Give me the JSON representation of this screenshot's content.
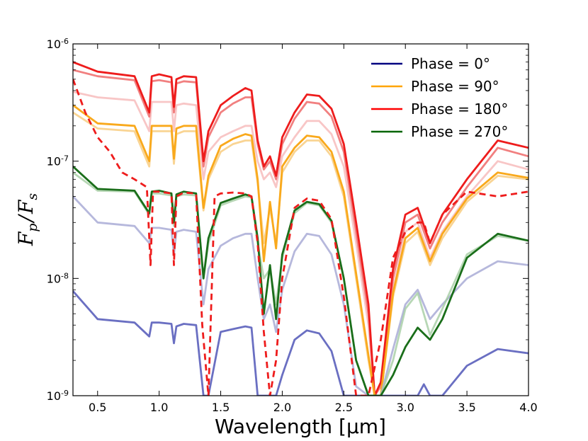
{
  "chart_data": {
    "type": "line",
    "title": "",
    "xlabel": "Wavelength [μm]",
    "ylabel": "F_p / F_s",
    "ylabel_parts": {
      "num_main": "F",
      "num_sub": "p",
      "slash": "/",
      "den_main": "F",
      "den_sub": "s"
    },
    "xlim": [
      0.3,
      4.0
    ],
    "ylim": [
      1e-09,
      1e-06
    ],
    "yscale": "log",
    "xticks": [
      0.5,
      1.0,
      1.5,
      2.0,
      2.5,
      3.0,
      3.5,
      4.0
    ],
    "xtick_labels": [
      "0.5",
      "1.0",
      "1.5",
      "2.0",
      "2.5",
      "3.0",
      "3.5",
      "4.0"
    ],
    "ytick_labels": [
      {
        "base": "10",
        "exp": "-6"
      },
      {
        "base": "10",
        "exp": "-7"
      },
      {
        "base": "10",
        "exp": "-8"
      },
      {
        "base": "10",
        "exp": "-9"
      }
    ],
    "legend": [
      "Phase = 0°",
      "Phase = 90°",
      "Phase = 180°",
      "Phase = 270°"
    ],
    "legend_position": "top-right",
    "series": [
      {
        "name": "Phase = 180° (light)",
        "color": "#f08080",
        "opacity": 0.45,
        "x": [
          0.3,
          0.5,
          0.8,
          0.92,
          0.94,
          1.0,
          1.1,
          1.12,
          1.14,
          1.2,
          1.3,
          1.36,
          1.4,
          1.5,
          1.6,
          1.7,
          1.75,
          1.8,
          1.85,
          1.9,
          1.95,
          2.0,
          2.1,
          2.2,
          2.3,
          2.4,
          2.5,
          2.6,
          2.7,
          2.75,
          2.8,
          2.9,
          3.0,
          3.1,
          3.2,
          3.3,
          3.5,
          3.75,
          4.0
        ],
        "y": [
          3.9e-07,
          3.5e-07,
          3.3e-07,
          1.8e-07,
          3.2e-07,
          3.2e-07,
          3.2e-07,
          1.8e-07,
          3e-07,
          3.1e-07,
          3e-07,
          7e-08,
          1.2e-07,
          1.6e-07,
          1.8e-07,
          2e-07,
          2e-07,
          1e-07,
          7e-08,
          8e-08,
          6e-08,
          1.1e-07,
          1.6e-07,
          2.2e-07,
          2.2e-07,
          1.7e-07,
          9e-08,
          2e-08,
          4e-09,
          1e-09,
          1e-09,
          8e-09,
          2.5e-08,
          3e-08,
          1.5e-08,
          2.5e-08,
          5e-08,
          1e-07,
          8.5e-08
        ]
      },
      {
        "name": "Phase = 180° (mid)",
        "color": "#ef6a6a",
        "opacity": 0.85,
        "x": [
          0.3,
          0.5,
          0.8,
          0.92,
          0.94,
          1.0,
          1.1,
          1.12,
          1.14,
          1.2,
          1.3,
          1.36,
          1.4,
          1.5,
          1.6,
          1.7,
          1.75,
          1.8,
          1.85,
          1.9,
          1.95,
          2.0,
          2.1,
          2.2,
          2.3,
          2.4,
          2.5,
          2.6,
          2.7,
          2.75,
          2.8,
          2.9,
          3.0,
          3.1,
          3.2,
          3.3,
          3.5,
          3.75,
          4.0
        ],
        "y": [
          6e-07,
          5.3e-07,
          4.9e-07,
          2.4e-07,
          4.8e-07,
          4.9e-07,
          4.7e-07,
          2.6e-07,
          4.6e-07,
          4.8e-07,
          4.7e-07,
          9e-08,
          1.6e-07,
          2.6e-07,
          3.1e-07,
          3.5e-07,
          3.5e-07,
          1.4e-07,
          8.5e-08,
          1e-07,
          7e-08,
          1.4e-07,
          2.3e-07,
          3.2e-07,
          3.1e-07,
          2.4e-07,
          1.2e-07,
          2.5e-08,
          5e-09,
          1e-09,
          1.2e-09,
          1e-08,
          3e-08,
          3.5e-08,
          1.8e-08,
          3e-08,
          6e-08,
          1.3e-07,
          1.1e-07
        ]
      },
      {
        "name": "Phase = 180°",
        "color": "#ee1c1c",
        "opacity": 1,
        "x": [
          0.3,
          0.5,
          0.8,
          0.92,
          0.94,
          1.0,
          1.1,
          1.12,
          1.14,
          1.2,
          1.3,
          1.36,
          1.4,
          1.5,
          1.6,
          1.7,
          1.75,
          1.8,
          1.85,
          1.9,
          1.95,
          2.0,
          2.1,
          2.2,
          2.3,
          2.4,
          2.5,
          2.6,
          2.7,
          2.75,
          2.8,
          2.9,
          3.0,
          3.1,
          3.2,
          3.3,
          3.5,
          3.75,
          4.0
        ],
        "y": [
          7e-07,
          5.8e-07,
          5.3e-07,
          2.6e-07,
          5.3e-07,
          5.5e-07,
          5.2e-07,
          2.9e-07,
          5e-07,
          5.3e-07,
          5.2e-07,
          1e-07,
          1.8e-07,
          3e-07,
          3.6e-07,
          4.2e-07,
          4e-07,
          1.5e-07,
          9e-08,
          1.1e-07,
          7.5e-08,
          1.6e-07,
          2.6e-07,
          3.7e-07,
          3.6e-07,
          2.8e-07,
          1.4e-07,
          3e-08,
          6e-09,
          1e-09,
          1.3e-09,
          1.2e-08,
          3.5e-08,
          4e-08,
          2e-08,
          3.5e-08,
          7e-08,
          1.5e-07,
          1.3e-07
        ]
      },
      {
        "name": "Phase = 90° (light)",
        "color": "#f8c978",
        "opacity": 0.8,
        "x": [
          0.3,
          0.5,
          0.8,
          0.92,
          0.94,
          1.0,
          1.1,
          1.12,
          1.14,
          1.2,
          1.3,
          1.36,
          1.4,
          1.5,
          1.6,
          1.7,
          1.75,
          1.8,
          1.85,
          1.9,
          1.95,
          2.0,
          2.1,
          2.2,
          2.3,
          2.4,
          2.5,
          2.6,
          2.7,
          2.75,
          2.8,
          2.9,
          3.0,
          3.1,
          3.2,
          3.3,
          3.5,
          3.75,
          4.0
        ],
        "y": [
          2.6e-07,
          1.9e-07,
          1.8e-07,
          9e-08,
          1.8e-07,
          1.8e-07,
          1.8e-07,
          9.5e-08,
          1.7e-07,
          1.8e-07,
          1.8e-07,
          3.8e-08,
          7e-08,
          1.2e-07,
          1.4e-07,
          1.5e-07,
          1.5e-07,
          6.5e-08,
          2e-08,
          4e-08,
          2e-08,
          8e-08,
          1.2e-07,
          1.5e-07,
          1.5e-07,
          1.1e-07,
          5e-08,
          1e-08,
          2e-09,
          1e-09,
          1e-09,
          7e-09,
          2e-08,
          2.5e-08,
          1.3e-08,
          2.2e-08,
          4.5e-08,
          7.5e-08,
          7e-08
        ]
      },
      {
        "name": "Phase = 90°",
        "color": "#f9a91c",
        "opacity": 1,
        "x": [
          0.3,
          0.5,
          0.8,
          0.92,
          0.94,
          1.0,
          1.1,
          1.12,
          1.14,
          1.2,
          1.3,
          1.36,
          1.4,
          1.5,
          1.6,
          1.7,
          1.75,
          1.8,
          1.85,
          1.9,
          1.95,
          2.0,
          2.1,
          2.2,
          2.3,
          2.4,
          2.5,
          2.6,
          2.7,
          2.75,
          2.8,
          2.9,
          3.0,
          3.1,
          3.2,
          3.3,
          3.5,
          3.75,
          4.0
        ],
        "y": [
          3e-07,
          2.1e-07,
          2e-07,
          1e-07,
          2e-07,
          2e-07,
          2e-07,
          1.05e-07,
          1.9e-07,
          2e-07,
          2e-07,
          4e-08,
          7.5e-08,
          1.35e-07,
          1.55e-07,
          1.7e-07,
          1.65e-07,
          7e-08,
          1.4e-08,
          4.5e-08,
          1.8e-08,
          9e-08,
          1.3e-07,
          1.65e-07,
          1.6e-07,
          1.2e-07,
          5.5e-08,
          1.1e-08,
          2.2e-09,
          1e-09,
          1e-09,
          7.5e-09,
          2.2e-08,
          2.7e-08,
          1.4e-08,
          2.4e-08,
          4.8e-08,
          8e-08,
          7.2e-08
        ]
      },
      {
        "name": "Phase = 0° (light)",
        "color": "#aeb0d8",
        "opacity": 0.9,
        "x": [
          0.3,
          0.5,
          0.8,
          0.92,
          0.94,
          1.0,
          1.1,
          1.12,
          1.14,
          1.2,
          1.3,
          1.36,
          1.4,
          1.5,
          1.6,
          1.7,
          1.75,
          1.8,
          1.85,
          1.9,
          1.95,
          2.0,
          2.1,
          2.2,
          2.3,
          2.4,
          2.5,
          2.6,
          2.7,
          2.75,
          2.8,
          2.9,
          3.0,
          3.1,
          3.2,
          3.3,
          3.5,
          3.75,
          4.0
        ],
        "y": [
          5e-08,
          3e-08,
          2.8e-08,
          2e-08,
          2.7e-08,
          2.7e-08,
          2.6e-08,
          1.6e-08,
          2.5e-08,
          2.6e-08,
          2.5e-08,
          6e-09,
          1.2e-08,
          1.9e-08,
          2.2e-08,
          2.4e-08,
          2.4e-08,
          1e-08,
          4.5e-09,
          6e-09,
          3.5e-09,
          8e-09,
          1.7e-08,
          2.4e-08,
          2.3e-08,
          1.6e-08,
          6e-09,
          1.2e-09,
          1e-09,
          1e-09,
          1e-09,
          2.5e-09,
          6e-09,
          8e-09,
          4.5e-09,
          6e-09,
          1e-08,
          1.4e-08,
          1.3e-08
        ]
      },
      {
        "name": "Phase = 0°",
        "color": "#6a6fc2",
        "opacity": 1,
        "x": [
          0.3,
          0.5,
          0.8,
          0.92,
          0.94,
          1.0,
          1.1,
          1.12,
          1.14,
          1.2,
          1.3,
          1.36,
          1.4,
          1.5,
          1.6,
          1.7,
          1.75,
          1.8,
          1.85,
          1.9,
          1.95,
          2.0,
          2.1,
          2.2,
          2.3,
          2.4,
          2.5,
          2.6,
          2.7,
          2.75,
          2.8,
          2.9,
          3.0,
          3.1,
          3.15,
          3.2,
          3.3,
          3.5,
          3.75,
          4.0
        ],
        "y": [
          7.8e-09,
          4.5e-09,
          4.2e-09,
          3.2e-09,
          4.2e-09,
          4.2e-09,
          4.1e-09,
          2.8e-09,
          3.9e-09,
          4.1e-09,
          4e-09,
          1e-09,
          1e-09,
          3.5e-09,
          3.7e-09,
          3.9e-09,
          3.8e-09,
          1e-09,
          1e-09,
          1e-09,
          1e-09,
          1.5e-09,
          3e-09,
          3.6e-09,
          3.4e-09,
          2.4e-09,
          1e-09,
          1e-09,
          1e-09,
          1e-09,
          1e-09,
          1e-09,
          1e-09,
          1e-09,
          1.25e-09,
          1e-09,
          1e-09,
          1.8e-09,
          2.5e-09,
          2.3e-09
        ]
      },
      {
        "name": "Phase = 270° (light)",
        "color": "#9fc99c",
        "opacity": 0.75,
        "x": [
          0.3,
          0.5,
          0.8,
          0.92,
          0.94,
          1.0,
          1.1,
          1.12,
          1.14,
          1.2,
          1.3,
          1.36,
          1.4,
          1.5,
          1.6,
          1.7,
          1.75,
          1.8,
          1.85,
          1.9,
          1.95,
          2.0,
          2.1,
          2.2,
          2.3,
          2.4,
          2.5,
          2.6,
          2.7,
          2.75,
          2.8,
          2.9,
          3.0,
          3.1,
          3.2,
          3.3,
          3.5,
          3.75,
          4.0
        ],
        "y": [
          8e-08,
          5.6e-08,
          5.5e-08,
          3.5e-08,
          5.3e-08,
          5.3e-08,
          5.1e-08,
          2.8e-08,
          5e-08,
          5.2e-08,
          5.1e-08,
          1e-08,
          2e-08,
          4.2e-08,
          4.6e-08,
          5e-08,
          4.9e-08,
          2e-08,
          1e-08,
          1.2e-08,
          6e-09,
          1.5e-08,
          3.6e-08,
          4.4e-08,
          4.2e-08,
          3e-08,
          1e-08,
          2e-09,
          1e-09,
          1e-09,
          1e-09,
          2e-09,
          5.5e-09,
          7.5e-09,
          3.3e-09,
          5.5e-09,
          1.6e-08,
          2.3e-08,
          2.1e-08
        ]
      },
      {
        "name": "Phase = 270°",
        "color": "#1a6e1a",
        "opacity": 1,
        "x": [
          0.3,
          0.5,
          0.8,
          0.92,
          0.94,
          1.0,
          1.1,
          1.12,
          1.14,
          1.2,
          1.3,
          1.36,
          1.4,
          1.5,
          1.6,
          1.7,
          1.75,
          1.8,
          1.85,
          1.9,
          1.95,
          2.0,
          2.1,
          2.2,
          2.3,
          2.4,
          2.5,
          2.6,
          2.7,
          2.75,
          2.8,
          2.9,
          3.0,
          3.1,
          3.2,
          3.3,
          3.5,
          3.75,
          4.0
        ],
        "y": [
          9e-08,
          5.8e-08,
          5.6e-08,
          3.6e-08,
          5.5e-08,
          5.6e-08,
          5.3e-08,
          3e-08,
          5.2e-08,
          5.5e-08,
          5.3e-08,
          1e-08,
          2.2e-08,
          4.4e-08,
          4.8e-08,
          5.2e-08,
          5e-08,
          2.2e-08,
          5e-09,
          1.3e-08,
          4.5e-09,
          1.6e-08,
          3.8e-08,
          4.5e-08,
          4.3e-08,
          3.1e-08,
          1e-08,
          2e-09,
          1e-09,
          1e-09,
          1e-09,
          1.5e-09,
          2.6e-09,
          3.8e-09,
          3e-09,
          4.5e-09,
          1.5e-08,
          2.4e-08,
          2.1e-08
        ]
      },
      {
        "name": "Phase = 180° (dashed)",
        "color": "#ee1c1c",
        "opacity": 1,
        "dashed": true,
        "x": [
          0.3,
          0.4,
          0.5,
          0.6,
          0.7,
          0.8,
          0.9,
          0.93,
          0.95,
          1.0,
          1.1,
          1.12,
          1.14,
          1.2,
          1.3,
          1.35,
          1.4,
          1.45,
          1.5,
          1.6,
          1.7,
          1.75,
          1.8,
          1.85,
          1.9,
          1.95,
          2.0,
          2.1,
          2.2,
          2.3,
          2.4,
          2.5,
          2.6,
          2.7,
          2.8,
          2.9,
          3.0,
          3.1,
          3.15,
          3.2,
          3.3,
          3.5,
          3.75,
          4.0
        ],
        "y": [
          5e-07,
          2.6e-07,
          1.6e-07,
          1.2e-07,
          8e-08,
          7e-08,
          6e-08,
          1.3e-08,
          5.5e-08,
          5.5e-08,
          5.3e-08,
          1.3e-08,
          5e-08,
          5.4e-08,
          5.3e-08,
          4e-09,
          1e-09,
          5e-08,
          5.3e-08,
          5.4e-08,
          5.3e-08,
          5e-08,
          2e-08,
          3.5e-09,
          1e-09,
          2e-09,
          1e-08,
          4e-08,
          4.8e-08,
          4.6e-08,
          3.2e-08,
          7e-09,
          1e-09,
          1e-09,
          3e-09,
          1.5e-08,
          2.5e-08,
          3e-08,
          3e-08,
          2e-08,
          3.5e-08,
          5.5e-08,
          5e-08,
          5.5e-08
        ]
      }
    ],
    "legend_colors": [
      "#000080",
      "#ffa500",
      "#ff0000",
      "#006400"
    ]
  }
}
